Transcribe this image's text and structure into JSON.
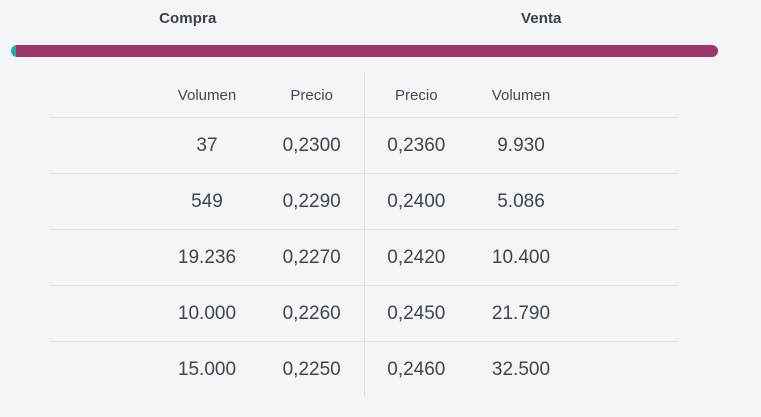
{
  "header": {
    "compra_label": "Compra",
    "venta_label": "Venta"
  },
  "depth_bar": {
    "compra_percent": 0.65,
    "venta_percent": 99.35,
    "compra_color": "#21a9b4",
    "venta_color": "#9e3768"
  },
  "table": {
    "columns": {
      "compra_volumen": "Volumen",
      "compra_precio": "Precio",
      "venta_precio": "Precio",
      "venta_volumen": "Volumen"
    },
    "rows": [
      {
        "compra_volumen": "37",
        "compra_precio": "0,2300",
        "venta_precio": "0,2360",
        "venta_volumen": "9.930"
      },
      {
        "compra_volumen": "549",
        "compra_precio": "0,2290",
        "venta_precio": "0,2400",
        "venta_volumen": "5.086"
      },
      {
        "compra_volumen": "19.236",
        "compra_precio": "0,2270",
        "venta_precio": "0,2420",
        "venta_volumen": "10.400"
      },
      {
        "compra_volumen": "10.000",
        "compra_precio": "0,2260",
        "venta_precio": "0,2450",
        "venta_volumen": "21.790"
      },
      {
        "compra_volumen": "15.000",
        "compra_precio": "0,2250",
        "venta_precio": "0,2460",
        "venta_volumen": "32.500"
      }
    ]
  },
  "colors": {
    "background": "#f4f5f7",
    "text": "#3d4651",
    "divider": "#e2e3e6",
    "compra_accent": "#21a9b4",
    "venta_accent": "#9e3768"
  }
}
